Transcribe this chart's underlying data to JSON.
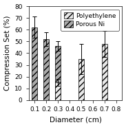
{
  "xlabel": "Diameter (cm)",
  "ylabel": "Compression Set (%)",
  "ylim": [
    0,
    80
  ],
  "yticks": [
    0,
    10,
    20,
    30,
    40,
    50,
    60,
    70,
    80
  ],
  "xticks": [
    0.1,
    0.2,
    0.3,
    0.4,
    0.5,
    0.6,
    0.7,
    0.8
  ],
  "xlim": [
    0.05,
    0.85
  ],
  "porous_ni": {
    "x": [
      0.1,
      0.2,
      0.3
    ],
    "y": [
      62,
      52,
      46
    ],
    "yerr": [
      9,
      6,
      4
    ],
    "color": "#aaaaaa",
    "hatch": "////",
    "label": "Porous Ni"
  },
  "polyethylene": {
    "x": [
      0.3,
      0.5,
      0.7
    ],
    "y": [
      15,
      35,
      48
    ],
    "yerr": [
      3,
      13,
      11
    ],
    "color": "#e8e8e8",
    "hatch": "////",
    "label": "Polyethylene"
  },
  "bar_width": 0.05,
  "tick_fontsize": 6.5,
  "label_fontsize": 7.5,
  "legend_fontsize": 6.5
}
